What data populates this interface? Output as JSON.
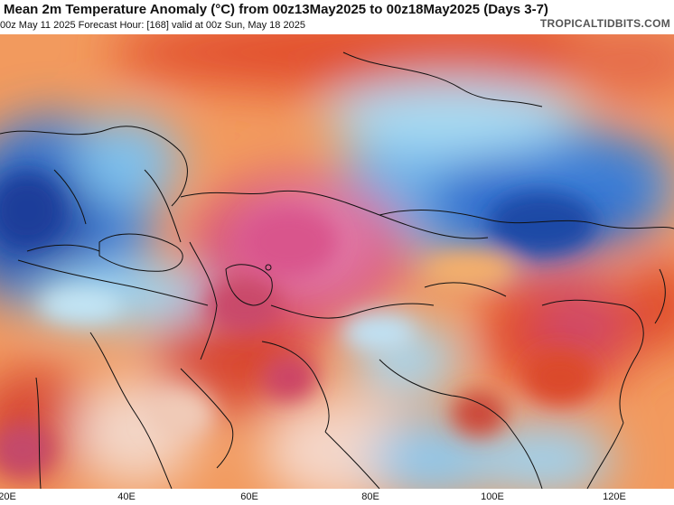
{
  "header": {
    "title": "Mean 2m Temperature Anomaly (°C) from 00z13May2025 to 00z18May2025 (Days 3-7)",
    "subtitle": "00z May 11 2025   Forecast Hour: [168]   valid at 00z Sun, May 18 2025",
    "brand": "TROPICALTIDBITS.COM"
  },
  "map": {
    "region": "Europe, Middle East and Asia",
    "longitude_ticks": [
      "20E",
      "40E",
      "60E",
      "80E",
      "100E",
      "120E"
    ],
    "colors": {
      "strong_warm": "#d0507a",
      "warm": "#e24a2c",
      "mild_warm": "#f6a05a",
      "neutral": "#f7e6d8",
      "cool": "#9fd4f0",
      "cold": "#2f6fcf",
      "very_cold": "#1d3f9e",
      "borders": "#111111"
    }
  }
}
